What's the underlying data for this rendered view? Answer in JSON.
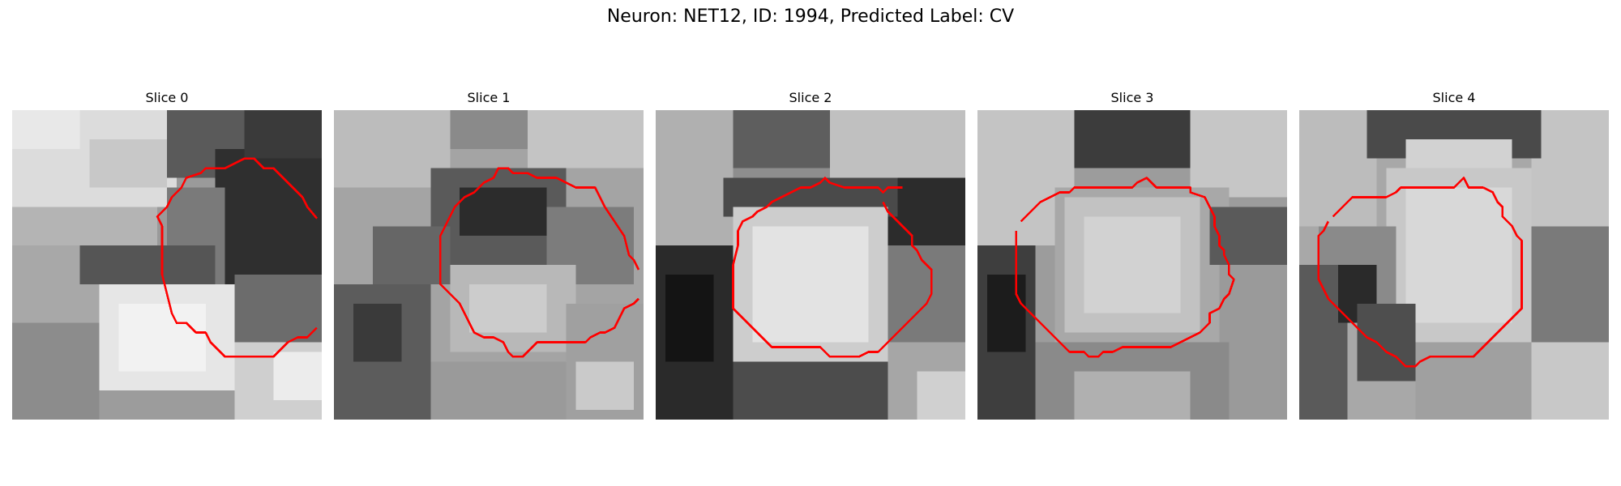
{
  "figure": {
    "title": "Neuron: NET12, ID: 1994, Predicted Label: CV",
    "contour_color": "#ff0000"
  },
  "panels": [
    {
      "title": "Slice 0"
    },
    {
      "title": "Slice 1"
    },
    {
      "title": "Slice 2"
    },
    {
      "title": "Slice 3"
    },
    {
      "title": "Slice 4"
    }
  ]
}
